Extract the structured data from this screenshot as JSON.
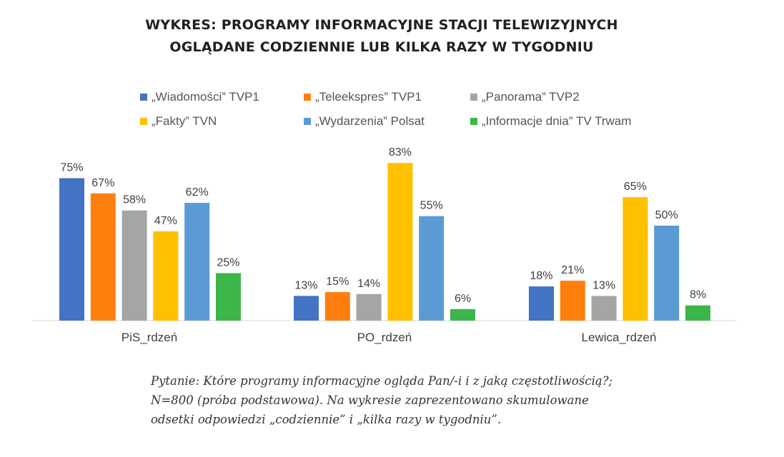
{
  "title_line1": "WYKRES: PROGRAMY INFORMACYJNE STACJI TELEWIZYJNYCH",
  "title_line2": "OGLĄDANE CODZIENNIE LUB KILKA RAZY W TYGODNIU",
  "note": "Pytanie: Które programy informacyjne ogląda Pan/-i i z jaką częstotliwością?; N=800 (próba podstawowa). Na wykresie zaprezentowano skumulowane odsetki odpowiedzi „codziennie” i „kilka razy w tygodniu”.",
  "chart_data": {
    "type": "bar",
    "title": "WYKRES: PROGRAMY INFORMACYJNE STACJI TELEWIZYJNYCH OGLĄDANE CODZIENNIE LUB KILKA RAZY W TYGODNIU",
    "xlabel": "",
    "ylabel": "",
    "ylim": [
      0,
      100
    ],
    "grid": false,
    "legend": "top",
    "value_suffix": "%",
    "categories": [
      "PiS_rdzeń",
      "PO_rdzeń",
      "Lewica_rdzeń"
    ],
    "series": [
      {
        "name": "„Wiadomości” TVP1",
        "color": "#4472c4",
        "values": [
          75,
          13,
          18
        ]
      },
      {
        "name": "„Teleekspres” TVP1",
        "color": "#ff7f0e",
        "values": [
          67,
          15,
          21
        ]
      },
      {
        "name": "„Panorama” TVP2",
        "color": "#a5a5a5",
        "values": [
          58,
          14,
          13
        ]
      },
      {
        "name": "„Fakty” TVN",
        "color": "#ffc000",
        "values": [
          47,
          83,
          65
        ]
      },
      {
        "name": "„Wydarzenia” Polsat",
        "color": "#5b9bd5",
        "values": [
          62,
          55,
          50
        ]
      },
      {
        "name": "„Informacje dnia” TV Trwam",
        "color": "#3cb54a",
        "values": [
          25,
          6,
          8
        ]
      }
    ]
  }
}
